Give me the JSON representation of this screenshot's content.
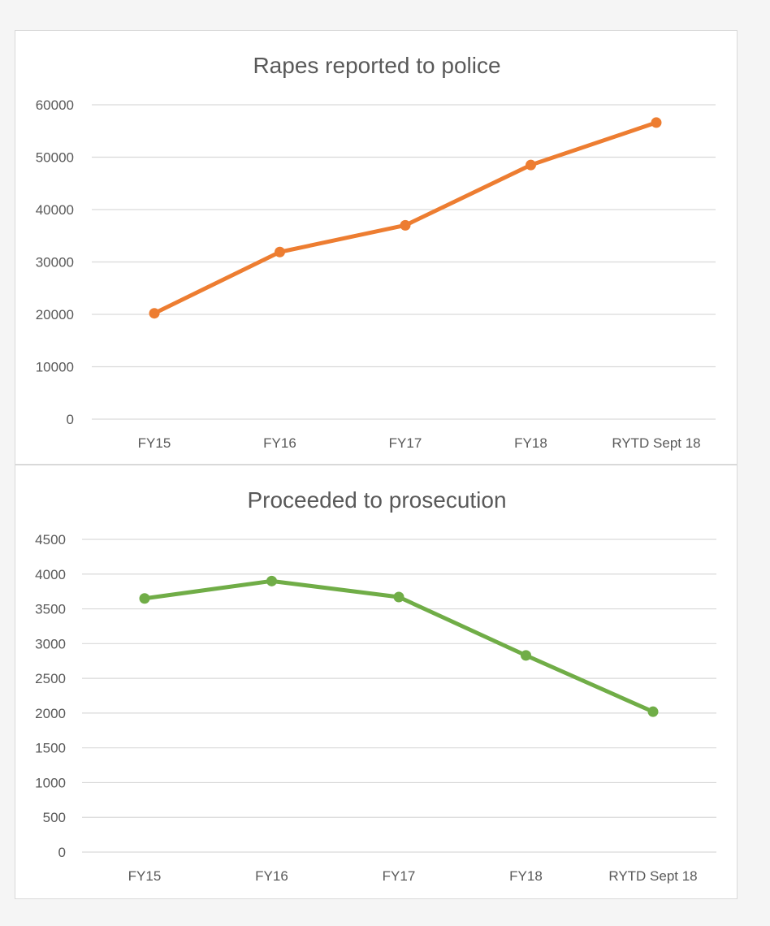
{
  "chart_data": [
    {
      "type": "line",
      "title": "Rapes reported to police",
      "categories": [
        "FY15",
        "FY16",
        "FY17",
        "FY18",
        "RYTD Sept 18"
      ],
      "series": [
        {
          "values": [
            20200,
            31900,
            37000,
            48500,
            56600
          ],
          "color": "#ed7d31"
        }
      ],
      "yticks": [
        0,
        10000,
        20000,
        30000,
        40000,
        50000,
        60000
      ],
      "ylim": [
        0,
        60000
      ],
      "grid": true,
      "legend": "none",
      "xlabel": "",
      "ylabel": ""
    },
    {
      "type": "line",
      "title": "Proceeded to prosecution",
      "categories": [
        "FY15",
        "FY16",
        "FY17",
        "FY18",
        "RYTD Sept 18"
      ],
      "series": [
        {
          "values": [
            3650,
            3900,
            3670,
            2830,
            2020
          ],
          "color": "#70ad47"
        }
      ],
      "yticks": [
        0,
        500,
        1000,
        1500,
        2000,
        2500,
        3000,
        3500,
        4000,
        4500
      ],
      "ylim": [
        0,
        4500
      ],
      "grid": true,
      "legend": "none",
      "xlabel": "",
      "ylabel": ""
    }
  ]
}
